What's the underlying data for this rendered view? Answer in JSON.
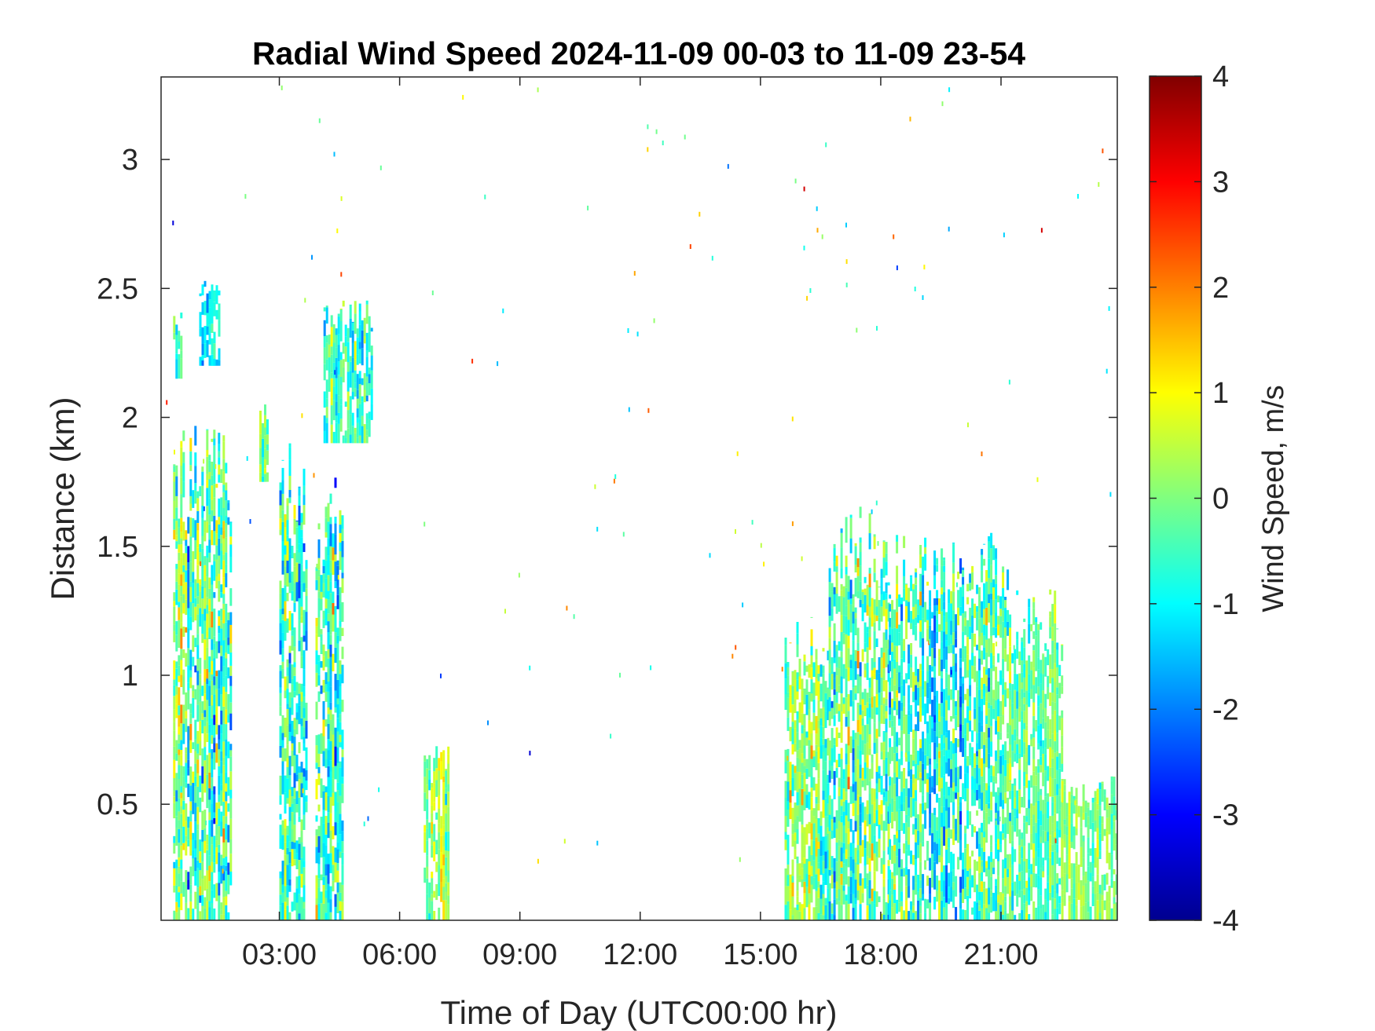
{
  "chart_data": {
    "type": "heatmap",
    "title": "Radial Wind Speed 2024-11-09 00-03 to 11-09 23-54",
    "xlabel": "Time of Day (UTC00:00 hr)",
    "ylabel": "Distance (km)",
    "x_unit": "hour of day",
    "xlim": [
      0.05,
      23.9
    ],
    "ylim": [
      0.05,
      3.32
    ],
    "x_ticks": [
      {
        "value": 3,
        "label": "03:00"
      },
      {
        "value": 6,
        "label": "06:00"
      },
      {
        "value": 9,
        "label": "09:00"
      },
      {
        "value": 12,
        "label": "12:00"
      },
      {
        "value": 15,
        "label": "15:00"
      },
      {
        "value": 18,
        "label": "18:00"
      },
      {
        "value": 21,
        "label": "21:00"
      }
    ],
    "y_ticks": [
      {
        "value": 0.5,
        "label": "0.5"
      },
      {
        "value": 1,
        "label": "1"
      },
      {
        "value": 1.5,
        "label": "1.5"
      },
      {
        "value": 2,
        "label": "2"
      },
      {
        "value": 2.5,
        "label": "2.5"
      },
      {
        "value": 3,
        "label": "3"
      }
    ],
    "colorbar": {
      "label": "Wind Speed, m/s",
      "range": [
        -4,
        4
      ],
      "colormap": "jet",
      "ticks": [
        {
          "value": 4,
          "label": "4"
        },
        {
          "value": 3,
          "label": "3"
        },
        {
          "value": 2,
          "label": "2"
        },
        {
          "value": 1,
          "label": "1"
        },
        {
          "value": 0,
          "label": "0"
        },
        {
          "value": -1,
          "label": "-1"
        },
        {
          "value": -2,
          "label": "-2"
        },
        {
          "value": -3,
          "label": "-3"
        },
        {
          "value": -4,
          "label": "-4"
        }
      ]
    },
    "regions": [
      {
        "t_start": 0.35,
        "t_end": 0.55,
        "d_min": 2.15,
        "d_max": 2.38,
        "mean": -0.2,
        "spread": 1.3
      },
      {
        "t_start": 1.0,
        "t_end": 1.5,
        "d_min": 2.2,
        "d_max": 2.5,
        "mean": -1.2,
        "spread": 1.0
      },
      {
        "t_start": 0.35,
        "t_end": 1.8,
        "d_min": 0.05,
        "d_max": 1.8,
        "mean": -0.5,
        "spread": 2.0
      },
      {
        "t_start": 2.5,
        "t_end": 2.7,
        "d_min": 1.75,
        "d_max": 2.05,
        "mean": 0.0,
        "spread": 1.0
      },
      {
        "t_start": 3.0,
        "t_end": 3.7,
        "d_min": 0.05,
        "d_max": 1.7,
        "mean": -0.6,
        "spread": 1.8
      },
      {
        "t_start": 3.9,
        "t_end": 4.6,
        "d_min": 0.05,
        "d_max": 1.6,
        "mean": -0.5,
        "spread": 2.0
      },
      {
        "t_start": 4.1,
        "t_end": 5.3,
        "d_min": 1.9,
        "d_max": 2.4,
        "mean": -0.6,
        "spread": 1.2
      },
      {
        "t_start": 6.6,
        "t_end": 7.2,
        "d_min": 0.05,
        "d_max": 0.65,
        "mean": 0.1,
        "spread": 1.3
      },
      {
        "t_start": 15.6,
        "t_end": 16.7,
        "d_min": 0.05,
        "d_max": 1.1,
        "mean": 0.0,
        "spread": 1.5
      },
      {
        "t_start": 16.7,
        "t_end": 18.2,
        "d_min": 0.05,
        "d_max": 1.48,
        "mean": -0.4,
        "spread": 1.9
      },
      {
        "t_start": 18.2,
        "t_end": 21.2,
        "d_min": 0.05,
        "d_max": 1.4,
        "mean": -0.6,
        "spread": 1.6
      },
      {
        "t_start": 21.2,
        "t_end": 22.5,
        "d_min": 0.05,
        "d_max": 1.2,
        "mean": -0.3,
        "spread": 1.0
      },
      {
        "t_start": 22.5,
        "t_end": 23.9,
        "d_min": 0.05,
        "d_max": 0.55,
        "mean": 0.0,
        "spread": 0.6
      }
    ]
  }
}
